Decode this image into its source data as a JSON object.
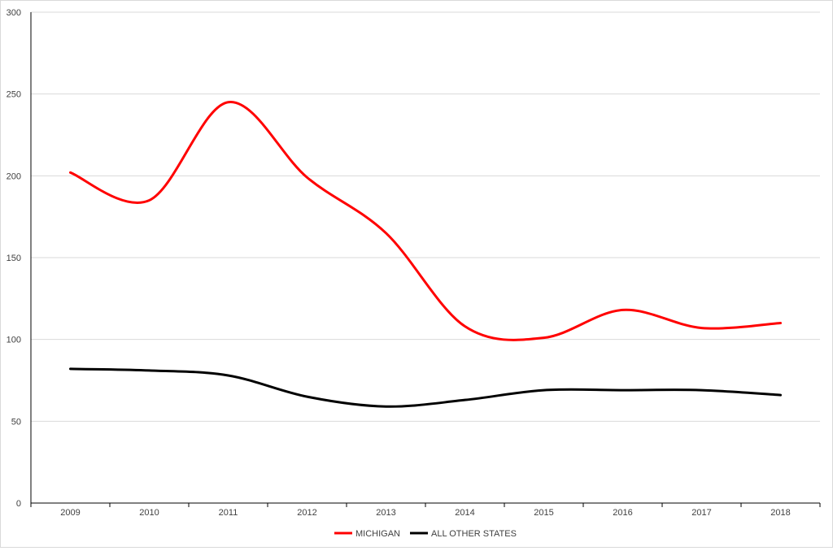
{
  "chart_data": {
    "type": "line",
    "title": "",
    "xlabel": "",
    "ylabel": "",
    "categories": [
      "2009",
      "2010",
      "2011",
      "2012",
      "2013",
      "2014",
      "2015",
      "2016",
      "2017",
      "2018"
    ],
    "ylim": [
      0,
      300
    ],
    "yticks": [
      0,
      50,
      100,
      150,
      200,
      250,
      300
    ],
    "grid": true,
    "legend_position": "bottom",
    "smooth": true,
    "series": [
      {
        "name": "MICHIGAN",
        "color": "#ff0000",
        "values": [
          202,
          185,
          245,
          199,
          165,
          108,
          101,
          118,
          107,
          110
        ]
      },
      {
        "name": "ALL OTHER STATES",
        "color": "#000000",
        "values": [
          82,
          81,
          78,
          65,
          59,
          63,
          69,
          69,
          69,
          66
        ]
      }
    ]
  }
}
